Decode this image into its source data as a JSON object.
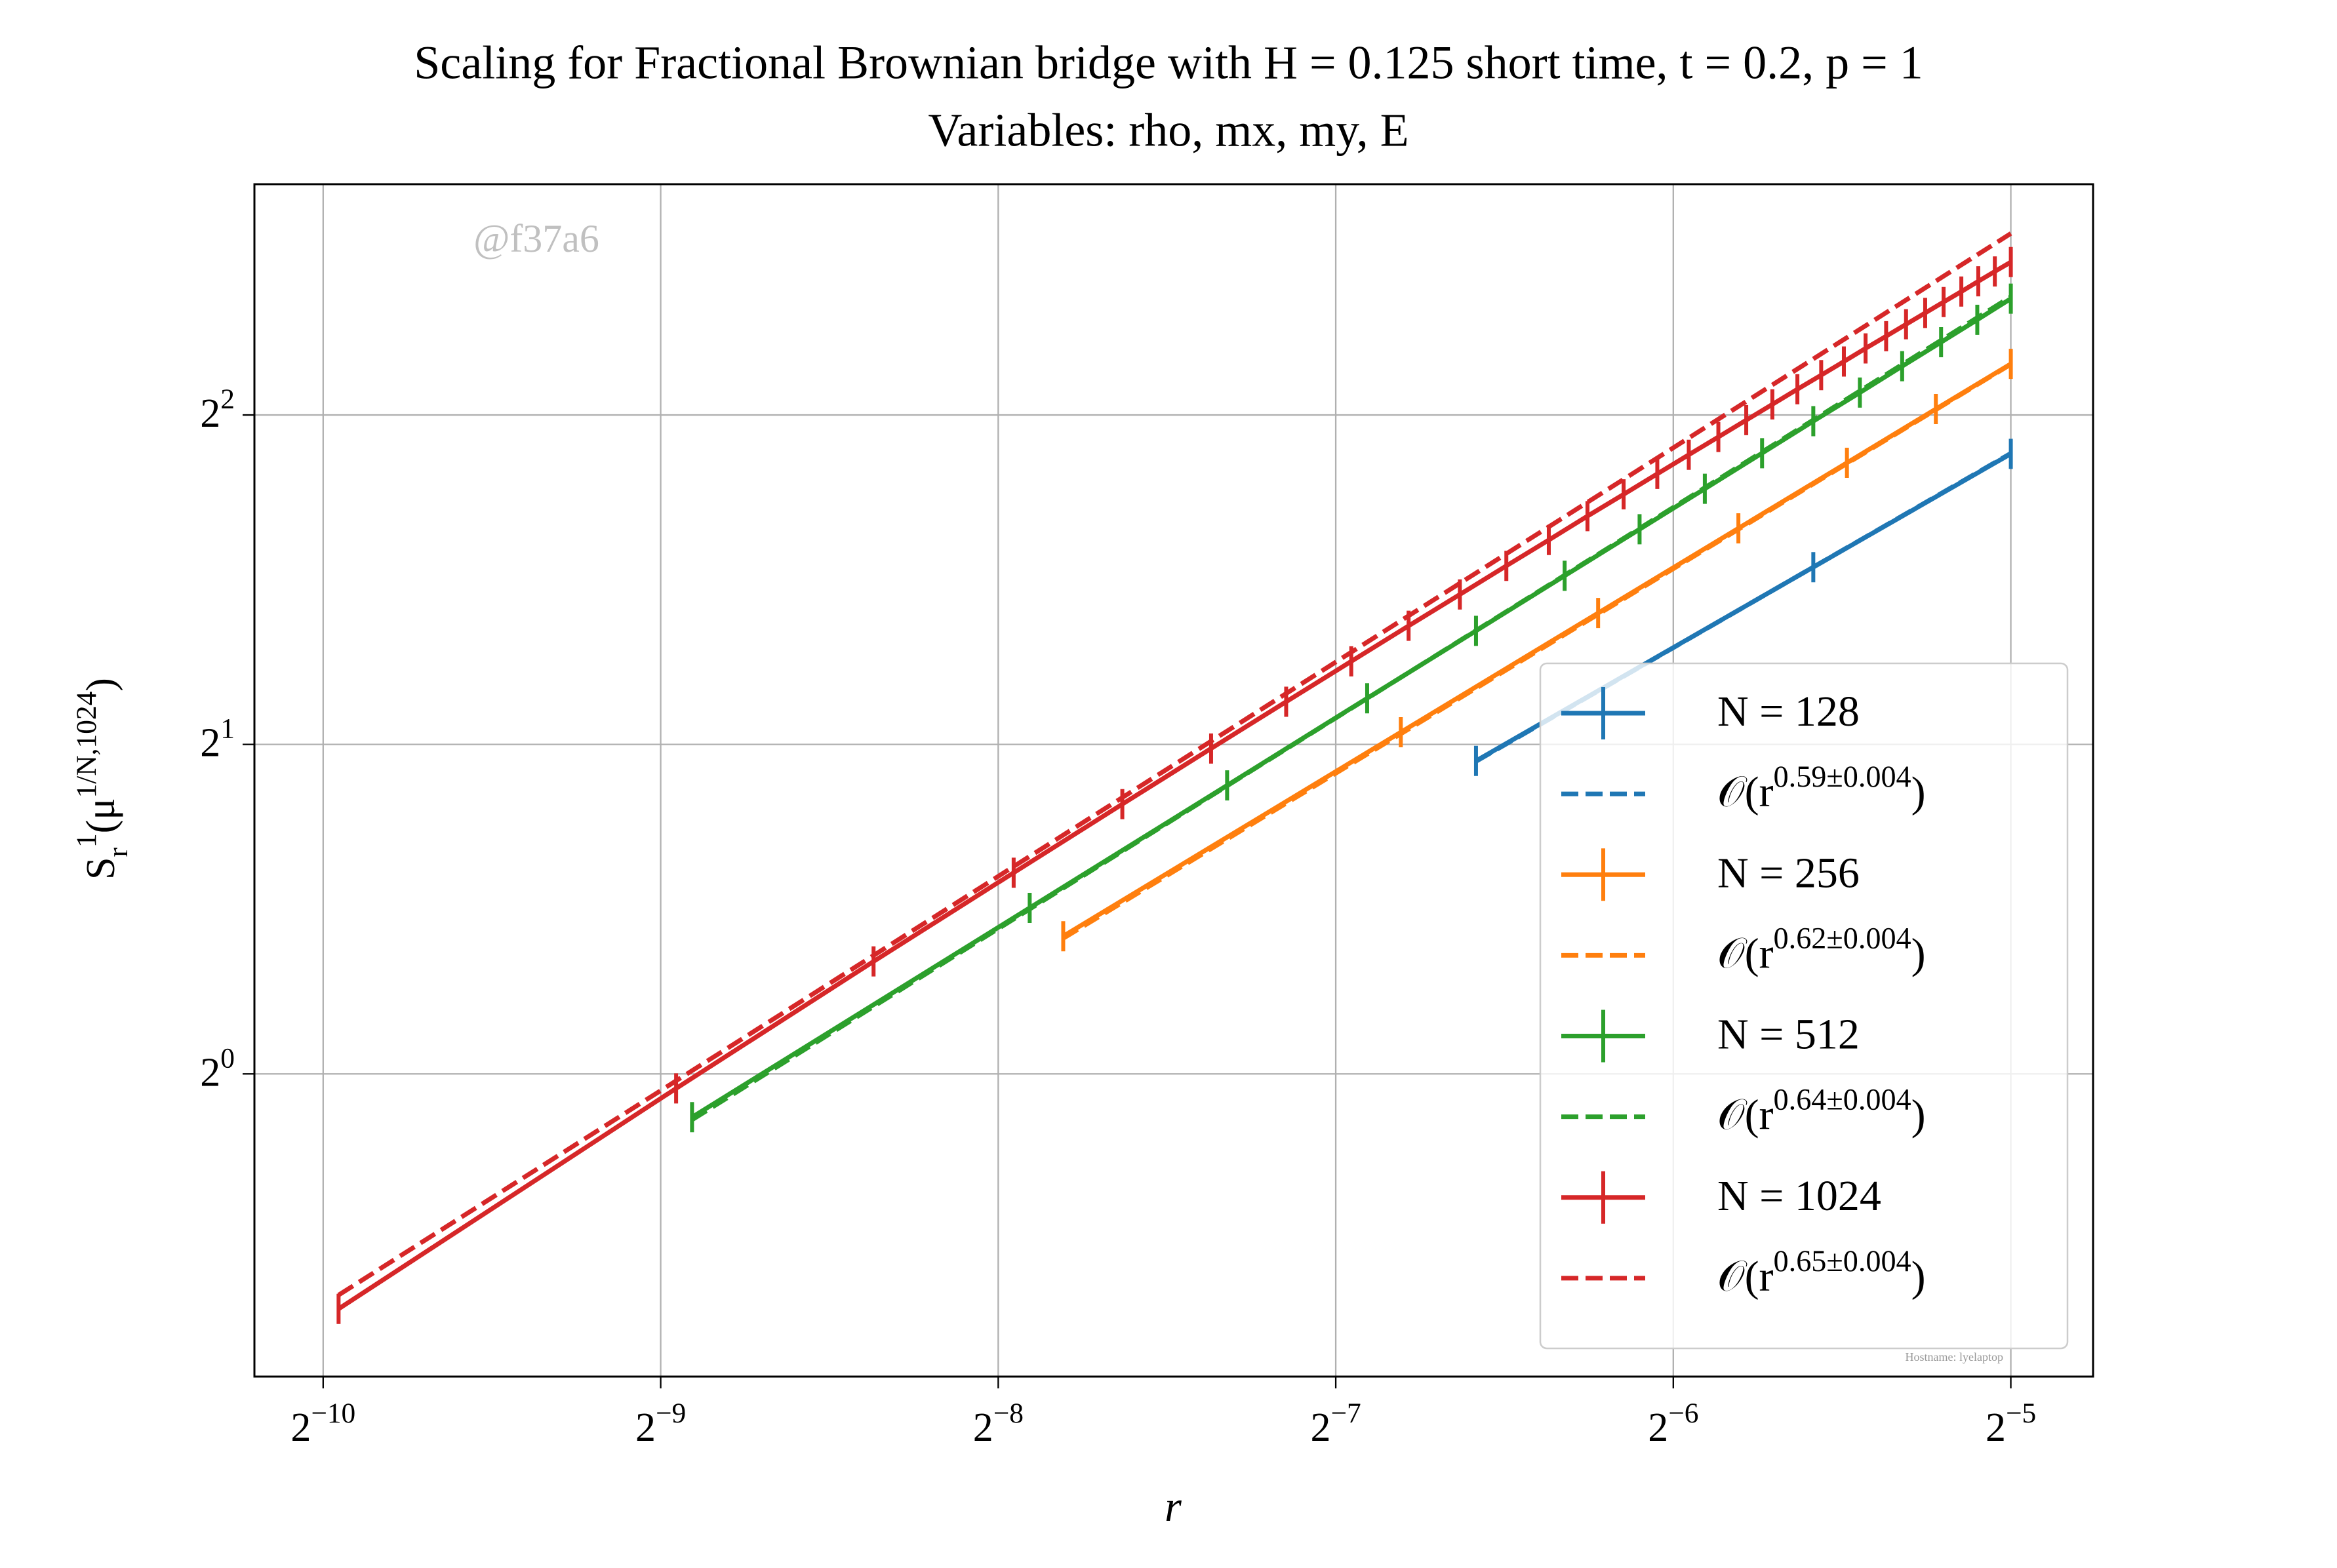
{
  "chart_data": {
    "type": "line",
    "title": "Scaling for Fractional Brownian bridge with H = 0.125 short time, t = 0.2, p = 1",
    "subtitle": "Variables: rho, mx, my, E",
    "xlabel": "r",
    "ylabel": "S_r^1(μ^{1/N,1024})",
    "xscale": "log2",
    "yscale": "log2",
    "grid": true,
    "legend": "lower right",
    "xlim": [
      0.000848,
      0.037
    ],
    "ylim": [
      0.529,
      6.5
    ],
    "xticks": [
      {
        "value": 0.0009765625,
        "label": "2^{−10}"
      },
      {
        "value": 0.001953125,
        "label": "2^{−9}"
      },
      {
        "value": 0.00390625,
        "label": "2^{−8}"
      },
      {
        "value": 0.0078125,
        "label": "2^{−7}"
      },
      {
        "value": 0.015625,
        "label": "2^{−6}"
      },
      {
        "value": 0.03125,
        "label": "2^{−5}"
      }
    ],
    "yticks": [
      {
        "value": 1,
        "label": "2^{0}"
      },
      {
        "value": 2,
        "label": "2^{1}"
      },
      {
        "value": 4,
        "label": "2^{2}"
      }
    ],
    "watermark": "@f37a6",
    "footer": "Hostname: lyelaptop",
    "series": [
      {
        "name": "N = 128",
        "color": "#1f77b4",
        "linestyle": "solid",
        "x": [
          0.01042,
          0.02083,
          0.03125
        ],
        "values": [
          1.932,
          2.904,
          3.686
        ]
      },
      {
        "name": "𝒪(r^{0.59±0.004})",
        "color": "#1f77b4",
        "linestyle": "dashed",
        "x": [
          0.01042,
          0.03125
        ],
        "values": [
          1.93,
          3.69
        ]
      },
      {
        "name": "N = 256",
        "color": "#ff7f0e",
        "linestyle": "solid",
        "x": [
          0.004464,
          0.008929,
          0.01339,
          0.01786,
          0.02232,
          0.02679,
          0.03125
        ],
        "values": [
          1.336,
          2.052,
          2.637,
          3.151,
          3.617,
          4.05,
          4.454
        ]
      },
      {
        "name": "𝒪(r^{0.62±0.004})",
        "color": "#ff7f0e",
        "linestyle": "dashed",
        "x": [
          0.004464,
          0.03125
        ],
        "values": [
          1.33,
          4.45
        ]
      },
      {
        "name": "N = 512",
        "color": "#2ca02c",
        "linestyle": "solid",
        "x": [
          0.002083,
          0.004167,
          0.00625,
          0.008333,
          0.01042,
          0.0125,
          0.01458,
          0.01667,
          0.01875,
          0.02083,
          0.02292,
          0.025,
          0.02708,
          0.02917,
          0.03125
        ],
        "values": [
          0.913,
          1.418,
          1.835,
          2.204,
          2.54,
          2.852,
          3.145,
          3.425,
          3.691,
          3.948,
          4.193,
          4.432,
          4.662,
          4.887,
          5.109
        ]
      },
      {
        "name": "𝒪(r^{0.64±0.004})",
        "color": "#2ca02c",
        "linestyle": "dashed",
        "x": [
          0.002083,
          0.03125
        ],
        "values": [
          0.908,
          5.13
        ]
      },
      {
        "name": "N = 1024",
        "color": "#d62728",
        "linestyle": "solid",
        "x": [
          0.001008,
          0.002016,
          0.003024,
          0.004032,
          0.00504,
          0.006048,
          0.007056,
          0.008065,
          0.009073,
          0.01008,
          0.01109,
          0.0121,
          0.0131,
          0.01411,
          0.01512,
          0.01613,
          0.01714,
          0.01815,
          0.01915,
          0.02016,
          0.02117,
          0.02218,
          0.02319,
          0.02419,
          0.0252,
          0.02621,
          0.02722,
          0.02823,
          0.02923,
          0.03024,
          0.03125
        ],
        "values": [
          0.61,
          0.97,
          1.267,
          1.527,
          1.764,
          1.983,
          2.188,
          2.382,
          2.567,
          2.742,
          2.912,
          3.075,
          3.233,
          3.385,
          3.534,
          3.679,
          3.819,
          3.957,
          4.09,
          4.223,
          4.35,
          4.476,
          4.601,
          4.721,
          4.841,
          4.958,
          5.073,
          5.186,
          5.299,
          5.41,
          5.518
        ]
      },
      {
        "name": "𝒪(r^{0.65±0.004})",
        "color": "#d62728",
        "linestyle": "dashed",
        "x": [
          0.001008,
          0.03125
        ],
        "values": [
          0.628,
          5.86
        ]
      }
    ]
  }
}
